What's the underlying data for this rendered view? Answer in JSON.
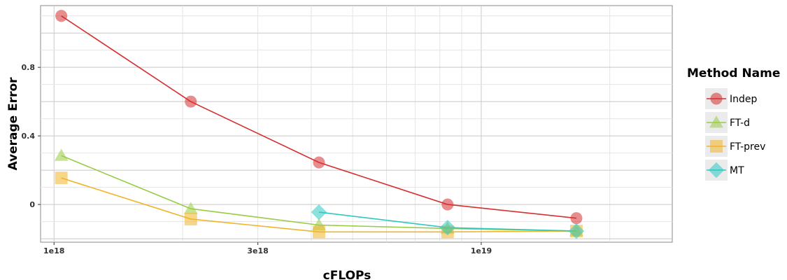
{
  "chart_data": {
    "type": "line",
    "xlabel": "cFLOPs",
    "ylabel": "Average Error",
    "x_scale": "log",
    "xlim": [
      9.3e+17,
      2.8e+19
    ],
    "ylim": [
      -0.22,
      1.16
    ],
    "x_ticks": [
      {
        "value": 1e+18,
        "label": "1e18"
      },
      {
        "value": 3e+18,
        "label": "3e18"
      },
      {
        "value": 1e+19,
        "label": "1e19"
      }
    ],
    "y_ticks": [
      {
        "value": 0,
        "label": "0"
      },
      {
        "value": 0.4,
        "label": "0.4"
      },
      {
        "value": 0.8,
        "label": "0.8"
      }
    ],
    "grid": true,
    "legend": {
      "title": "Method Name",
      "position": "right"
    },
    "series": [
      {
        "name": "Indep",
        "color": "#d62f2f",
        "marker": "circle",
        "x": [
          1.04e+18,
          2.09e+18,
          4.17e+18,
          8.34e+18,
          1.67e+19
        ],
        "y": [
          1.1,
          0.6,
          0.245,
          0.0,
          -0.08
        ]
      },
      {
        "name": "FT-d",
        "color": "#99cc44",
        "marker": "triangle",
        "x": [
          1.04e+18,
          2.09e+18,
          4.17e+18,
          8.34e+18,
          1.67e+19
        ],
        "y": [
          0.285,
          -0.025,
          -0.12,
          -0.14,
          -0.155
        ]
      },
      {
        "name": "FT-prev",
        "color": "#f0b429",
        "marker": "square",
        "x": [
          1.04e+18,
          2.09e+18,
          4.17e+18,
          8.34e+18,
          1.67e+19
        ],
        "y": [
          0.155,
          -0.085,
          -0.16,
          -0.16,
          -0.155
        ]
      },
      {
        "name": "MT",
        "color": "#2bc9c2",
        "marker": "diamond",
        "x": [
          4.17e+18,
          8.34e+18,
          1.67e+19
        ],
        "y": [
          -0.045,
          -0.135,
          -0.155
        ]
      }
    ]
  }
}
